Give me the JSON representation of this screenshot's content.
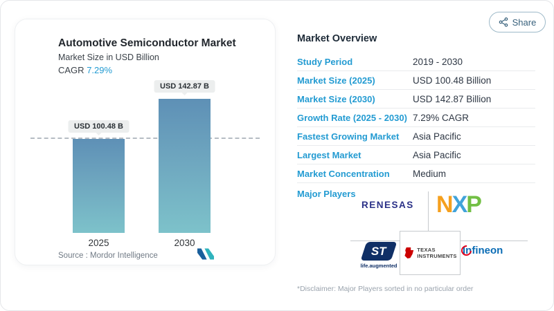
{
  "share": {
    "label": "Share"
  },
  "chart_card": {
    "title": "Automotive Semiconductor Market",
    "subtitle": "Market Size in USD Billion",
    "cagr_label": "CAGR",
    "cagr_value": "7.29%",
    "source_label": "Source :",
    "source_value": "Mordor Intelligence"
  },
  "chart_data": {
    "type": "bar",
    "title": "Automotive Semiconductor Market",
    "ylabel": "Market Size in USD Billion",
    "unit": "USD Billion",
    "cagr": "7.29%",
    "categories": [
      "2025",
      "2030"
    ],
    "values": [
      100.48,
      142.87
    ],
    "value_labels": [
      "USD 100.48 B",
      "USD 142.87 B"
    ],
    "ylim": [
      0,
      160
    ],
    "grid": false,
    "reference_line": {
      "value": 100.48,
      "style": "dashed"
    },
    "bar_color_top": "#5e90b6",
    "bar_color_bottom": "#7dc2ca"
  },
  "overview": {
    "heading": "Market Overview",
    "rows": [
      {
        "label": "Study Period",
        "value": "2019 - 2030"
      },
      {
        "label": "Market Size (2025)",
        "value": "USD 100.48 Billion"
      },
      {
        "label": "Market Size (2030)",
        "value": "USD 142.87 Billion"
      },
      {
        "label": "Growth Rate (2025 - 2030)",
        "value": "7.29% CAGR"
      },
      {
        "label": "Fastest Growing Market",
        "value": "Asia Pacific"
      },
      {
        "label": "Largest Market",
        "value": "Asia Pacific"
      },
      {
        "label": "Market Concentration",
        "value": "Medium"
      }
    ],
    "major_players_label": "Major Players",
    "major_players": [
      {
        "name": "Renesas",
        "wordmark": "RENESAS"
      },
      {
        "name": "NXP",
        "letters": [
          "N",
          "X",
          "P"
        ]
      },
      {
        "name": "STMicroelectronics",
        "wordmark": "ST",
        "tagline": "life.augmented"
      },
      {
        "name": "Texas Instruments",
        "line1": "Texas",
        "line2": "Instruments"
      },
      {
        "name": "Infineon",
        "wordmark": "Infineon"
      }
    ],
    "disclaimer": "*Disclaimer: Major Players sorted in no particular order"
  },
  "colors": {
    "accent_blue": "#239bd2",
    "bar_top": "#5e90b6",
    "bar_bottom": "#7dc2ca",
    "renesas_blue": "#2a3087",
    "nxp_orange": "#f5a01e",
    "nxp_blue": "#41a3da",
    "nxp_green": "#72bf44",
    "st_navy": "#0f2f66",
    "ti_red": "#cc0000",
    "infineon_blue": "#0a6cb5",
    "infineon_red": "#e2001a"
  }
}
